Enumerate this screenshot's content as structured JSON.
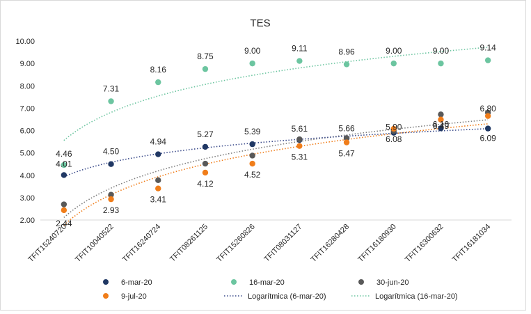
{
  "chart_data": {
    "type": "scatter",
    "title": "TES",
    "xlabel": "",
    "ylabel": "",
    "ylim": [
      2.0,
      10.0
    ],
    "yticks": [
      "2.00",
      "3.00",
      "4.00",
      "5.00",
      "6.00",
      "7.00",
      "8.00",
      "9.00",
      "10.00"
    ],
    "categories": [
      "TFIT15240720",
      "TFIT10040522",
      "TFIT16240724",
      "TFIT08261125",
      "TFIT15260826",
      "TFIT08031127",
      "TFIT16280428",
      "TFIT16180930",
      "TFIT16300632",
      "TFIT16181034"
    ],
    "grid": false,
    "legend_position": "bottom",
    "series": [
      {
        "name": "6-mar-20",
        "color": "#203864",
        "values": [
          4.01,
          4.5,
          4.94,
          5.27,
          5.39,
          5.58,
          5.66,
          5.9,
          6.1,
          6.09
        ],
        "labels": [
          "4.01",
          "4.50",
          "4.94",
          "5.27",
          "5.39",
          "",
          "",
          "5.90",
          "6.10",
          "6.09"
        ]
      },
      {
        "name": "16-mar-20",
        "color": "#6cc5a0",
        "values": [
          4.46,
          7.31,
          8.16,
          8.75,
          9.0,
          9.11,
          8.96,
          9.0,
          9.0,
          9.14
        ],
        "labels": [
          "4.46",
          "7.31",
          "8.16",
          "8.75",
          "9.00",
          "9.11",
          "8.96",
          "9.00",
          "9.00",
          "9.14"
        ]
      },
      {
        "name": "30-jun-20",
        "color": "#595959",
        "values": [
          2.7,
          3.13,
          3.78,
          4.52,
          4.88,
          5.61,
          5.66,
          5.98,
          6.72,
          6.8
        ],
        "labels": [
          "",
          "",
          "",
          "",
          "",
          "5.61",
          "5.66",
          "",
          "",
          "6.80"
        ]
      },
      {
        "name": "9-jul-20",
        "color": "#f07d1a",
        "values": [
          2.44,
          2.93,
          3.41,
          4.12,
          4.52,
          5.31,
          5.47,
          6.08,
          6.49,
          6.65
        ],
        "labels": [
          "2.44",
          "2.93",
          "3.41",
          "4.12",
          "4.52",
          "5.31",
          "5.47",
          "6.08",
          "6.49",
          ""
        ]
      }
    ],
    "trendlines": [
      {
        "name": "Logarítmica (6-mar-20)",
        "series": "6-mar-20",
        "type": "logarithmic",
        "color": "#3a4a8a"
      },
      {
        "name": "Logarítmica (16-mar-20)",
        "series": "16-mar-20",
        "type": "logarithmic",
        "color": "#6cc5a0"
      }
    ],
    "unlabeled_trendlines": [
      {
        "series": "30-jun-20",
        "type": "logarithmic",
        "color": "#7f7f7f"
      },
      {
        "series": "9-jul-20",
        "type": "logarithmic",
        "color": "#f07d1a"
      }
    ]
  }
}
